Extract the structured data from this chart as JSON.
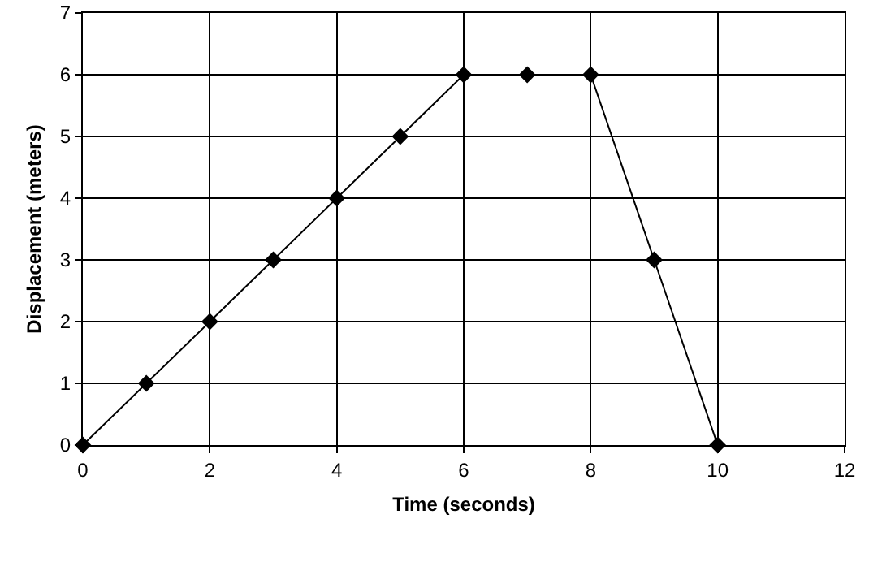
{
  "chart_data": {
    "type": "line",
    "xlabel": "Time (seconds)",
    "ylabel": "Displacement (meters)",
    "x": [
      0,
      1,
      2,
      3,
      4,
      5,
      6,
      7,
      8,
      9,
      10
    ],
    "series": [
      {
        "color": "#000000",
        "values": [
          0,
          1,
          2,
          3,
          4,
          5,
          6,
          6,
          6,
          3,
          0
        ]
      }
    ],
    "xlim": [
      0,
      12
    ],
    "xticks": [
      0,
      2,
      4,
      6,
      8,
      10,
      12
    ],
    "ylim": [
      0,
      7
    ],
    "yticks": [
      0,
      1,
      2,
      3,
      4,
      5,
      6,
      7
    ],
    "grid": true,
    "marker": "diamond",
    "line_style": "solid"
  }
}
